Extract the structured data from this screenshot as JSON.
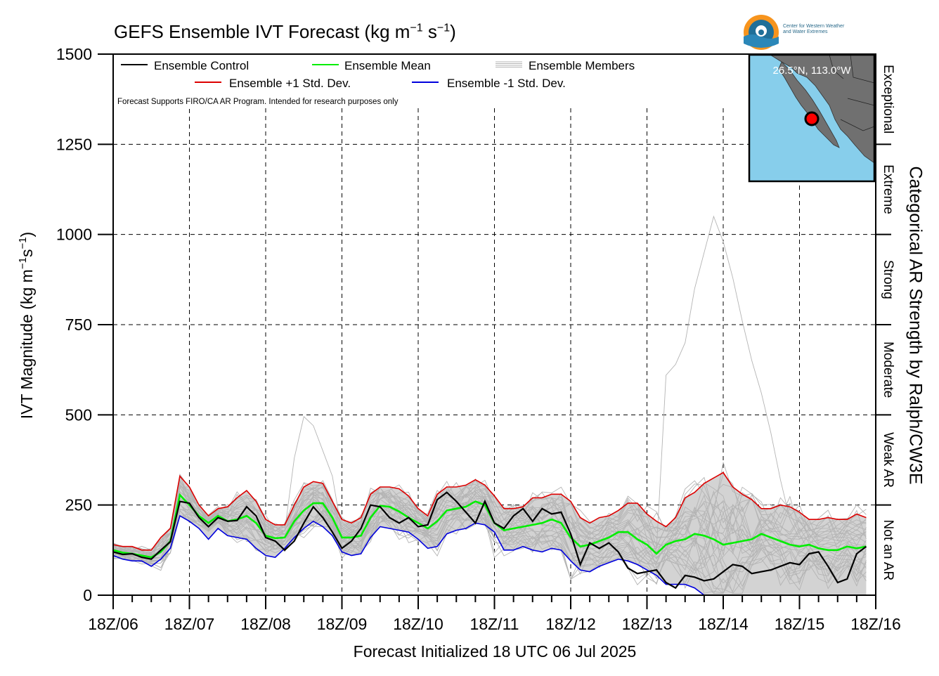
{
  "title": {
    "main": "GEFS Ensemble IVT Forecast (kg m",
    "sup1": "−1",
    "mid": " s",
    "sup2": "−1",
    "end": ")"
  },
  "xlabel": "Forecast Initialized 18 UTC 06 Jul 2025",
  "ylabel": {
    "main": "IVT Magnitude (kg m",
    "sup1": "−1",
    "mid": "s",
    "sup2": "−1",
    "end": ")"
  },
  "right_label": "Categorical AR Strength by Ralph/CW3E",
  "note": "Forecast Supports FIRO/CA AR Program. Intended for research purposes only",
  "logo": {
    "line1": "Center for Western Weather",
    "line2": "and Water Extremes"
  },
  "inset": {
    "location": "26.5°N, 113.0°W"
  },
  "categories": [
    "Not an AR",
    "Weak AR",
    "Moderate",
    "Strong",
    "Extreme",
    "Exceptional"
  ],
  "colors": {
    "control": "#000000",
    "mean": "#00ee00",
    "plus": "#dd0000",
    "minus": "#0000dd",
    "members": "#b4b4b4",
    "band": "#d3d3d3",
    "ocean": "#87ceeb",
    "land": "#707070"
  },
  "chart_data": {
    "type": "line",
    "xlim": [
      0,
      240
    ],
    "ylim": [
      0,
      1500
    ],
    "yticks": [
      0,
      250,
      500,
      750,
      1000,
      1250,
      1500
    ],
    "xtick_hours": [
      0,
      24,
      48,
      72,
      96,
      120,
      144,
      168,
      192,
      216,
      240
    ],
    "xtick_labels": [
      "18Z/06",
      "18Z/07",
      "18Z/08",
      "18Z/09",
      "18Z/10",
      "18Z/11",
      "18Z/12",
      "18Z/13",
      "18Z/14",
      "18Z/15",
      "18Z/16"
    ],
    "category_thresholds": [
      250,
      500,
      750,
      1000,
      1250
    ],
    "grid": true,
    "legend": [
      {
        "name": "Ensemble Control",
        "key": "control"
      },
      {
        "name": "Ensemble Mean",
        "key": "mean"
      },
      {
        "name": "Ensemble Members",
        "key": "members"
      },
      {
        "name": "Ensemble +1 Std. Dev.",
        "key": "plus"
      },
      {
        "name": "Ensemble -1 Std. Dev.",
        "key": "minus"
      }
    ],
    "x_step_hours": 3,
    "series": {
      "control": [
        120,
        113,
        115,
        105,
        100,
        125,
        148,
        260,
        255,
        215,
        190,
        215,
        205,
        207,
        245,
        220,
        160,
        150,
        125,
        150,
        200,
        245,
        215,
        175,
        130,
        150,
        185,
        250,
        245,
        215,
        200,
        215,
        190,
        195,
        265,
        285,
        260,
        230,
        200,
        260,
        200,
        185,
        220,
        240,
        205,
        240,
        225,
        230,
        170,
        85,
        145,
        130,
        145,
        120,
        75,
        60,
        65,
        70,
        35,
        20,
        55,
        50,
        40,
        45,
        65,
        85,
        80,
        60,
        65,
        70,
        80,
        90,
        85,
        115,
        120,
        80,
        35,
        45,
        115,
        135
      ],
      "mean": [
        125,
        118,
        115,
        110,
        105,
        120,
        150,
        278,
        250,
        220,
        200,
        220,
        205,
        210,
        220,
        200,
        165,
        158,
        160,
        205,
        235,
        255,
        255,
        215,
        160,
        160,
        165,
        215,
        248,
        245,
        232,
        215,
        200,
        185,
        205,
        235,
        240,
        245,
        260,
        250,
        200,
        180,
        185,
        190,
        195,
        200,
        210,
        200,
        160,
        135,
        140,
        150,
        160,
        175,
        175,
        155,
        140,
        115,
        140,
        150,
        155,
        170,
        165,
        155,
        140,
        145,
        150,
        155,
        170,
        160,
        150,
        140,
        135,
        140,
        130,
        125,
        125,
        135,
        130,
        135
      ],
      "plus": [
        140,
        135,
        135,
        125,
        125,
        160,
        185,
        330,
        300,
        250,
        220,
        240,
        245,
        270,
        290,
        260,
        210,
        195,
        195,
        250,
        300,
        315,
        310,
        260,
        210,
        200,
        215,
        280,
        300,
        300,
        295,
        275,
        240,
        220,
        280,
        300,
        300,
        305,
        320,
        305,
        275,
        240,
        240,
        245,
        270,
        270,
        280,
        280,
        260,
        215,
        200,
        215,
        220,
        235,
        255,
        255,
        225,
        205,
        190,
        215,
        270,
        285,
        310,
        325,
        340,
        300,
        280,
        265,
        240,
        240,
        250,
        245,
        230,
        210,
        210,
        215,
        210,
        210,
        225,
        215
      ],
      "minus": [
        110,
        100,
        95,
        95,
        80,
        100,
        130,
        220,
        205,
        185,
        155,
        185,
        165,
        160,
        155,
        130,
        110,
        105,
        130,
        160,
        185,
        205,
        190,
        165,
        120,
        110,
        115,
        160,
        190,
        185,
        180,
        175,
        155,
        130,
        135,
        170,
        180,
        185,
        200,
        195,
        175,
        125,
        125,
        135,
        125,
        120,
        130,
        125,
        95,
        70,
        65,
        80,
        90,
        100,
        95,
        85,
        70,
        55,
        30,
        30,
        30,
        20,
        0,
        0,
        0,
        0,
        0,
        0,
        0,
        0,
        0,
        0,
        0,
        0,
        0,
        0,
        0,
        0,
        0,
        0
      ],
      "members_note": "31 ensemble member traces; notable member peaks ~1050 near 18Z/14 and ~500 near 18Z/08"
    }
  }
}
